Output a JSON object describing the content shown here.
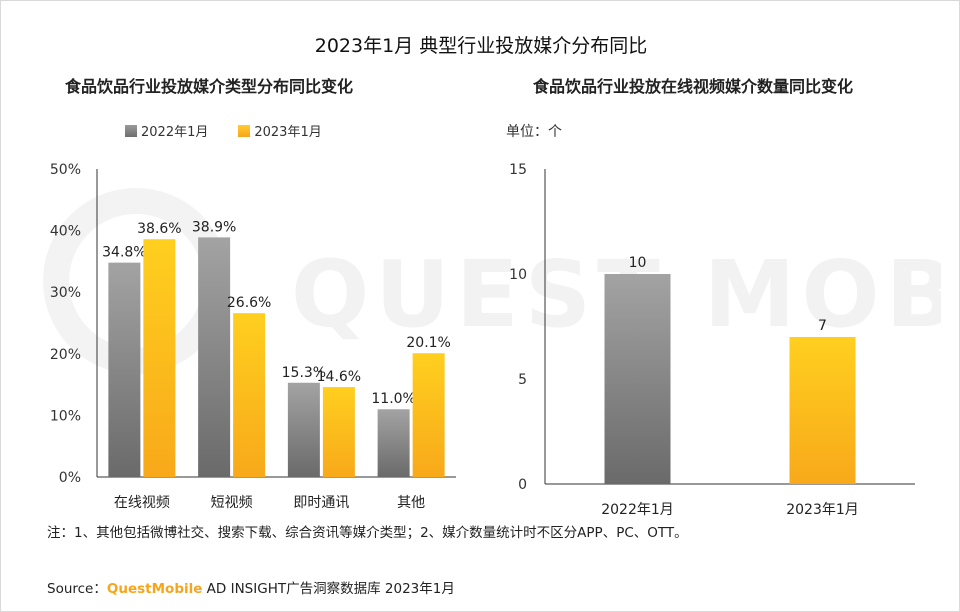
{
  "title": "2023年1月 典型行业投放媒介分布同比",
  "left_title": "食品饮品行业投放媒介类型分布同比变化",
  "right_title": "食品饮品行业投放在线视频媒介数量同比变化",
  "unit": "单位：个",
  "watermark": "QUEST MOBILE",
  "note": "注：1、其他包括微博社交、搜索下载、综合资讯等媒介类型；2、媒介数量统计时不区分APP、PC、OTT。",
  "source_prefix": "Source：",
  "source_brand": "QuestMobile",
  "source_rest": " AD INSIGHT广告洞察数据库 2023年1月",
  "colors": {
    "gray": "#8c8c8c",
    "gold": "#ffbf0f",
    "axis": "#333333"
  },
  "chart_data": [
    {
      "type": "bar",
      "title": "食品饮品行业投放媒介类型分布同比变化",
      "categories": [
        "在线视频",
        "短视频",
        "即时通讯",
        "其他"
      ],
      "series": [
        {
          "name": "2022年1月",
          "values": [
            34.8,
            38.9,
            15.3,
            11.0
          ]
        },
        {
          "name": "2023年1月",
          "values": [
            38.6,
            26.6,
            14.6,
            20.1
          ]
        }
      ],
      "value_labels": [
        [
          "34.8%",
          "38.9%",
          "15.3%",
          "11.0%"
        ],
        [
          "38.6%",
          "26.6%",
          "14.6%",
          "20.1%"
        ]
      ],
      "ylim": [
        0,
        50
      ],
      "yticks": [
        "0%",
        "10%",
        "20%",
        "30%",
        "40%",
        "50%"
      ],
      "legend": "top"
    },
    {
      "type": "bar",
      "title": "食品饮品行业投放在线视频媒介数量同比变化",
      "categories": [
        "2022年1月",
        "2023年1月"
      ],
      "values": [
        10,
        7
      ],
      "value_labels": [
        "10",
        "7"
      ],
      "ylim": [
        0,
        15
      ],
      "yticks": [
        "0",
        "5",
        "10",
        "15"
      ]
    }
  ]
}
